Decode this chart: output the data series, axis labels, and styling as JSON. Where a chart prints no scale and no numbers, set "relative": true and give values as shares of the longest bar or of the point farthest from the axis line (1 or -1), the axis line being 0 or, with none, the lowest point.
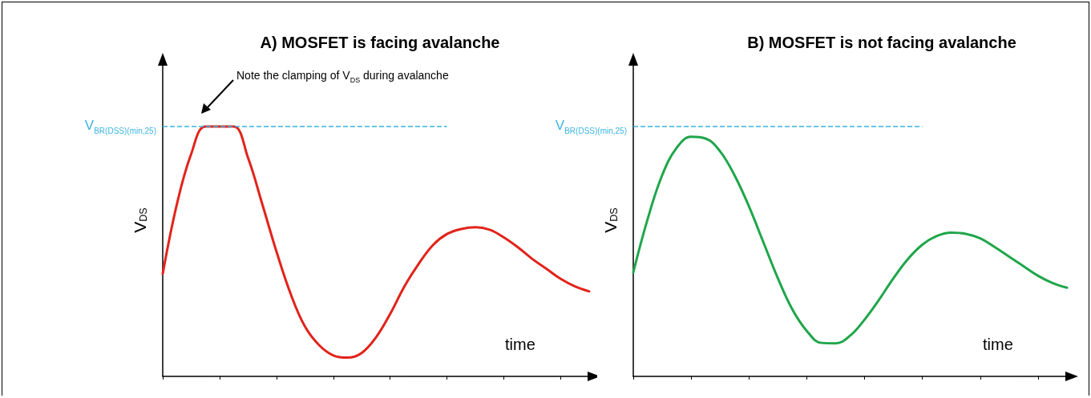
{
  "chart_data": [
    {
      "type": "line",
      "title": "A) MOSFET is facing avalanche",
      "xlabel": "time",
      "ylabel": "V$_{DS}$",
      "relative": true,
      "categories": [
        null,
        null,
        null,
        null,
        null,
        null,
        null,
        null,
        null,
        null,
        null,
        null,
        null,
        null,
        null,
        null,
        null,
        null,
        null,
        null,
        null,
        null,
        null,
        null,
        null,
        null,
        null,
        null,
        null,
        null,
        null
      ],
      "series": [
        {
          "color": "#e2231a",
          "values": [
            0.41,
            0.69,
            0.89,
            1,
            1,
            1,
            0.875,
            0.69,
            0.5,
            0.33,
            0.2,
            0.125,
            0.084,
            0.075,
            0.094,
            0.156,
            0.25,
            0.36,
            0.45,
            0.525,
            0.57,
            0.59,
            0.597,
            0.587,
            0.556,
            0.516,
            0.47,
            0.43,
            0.39,
            0.36,
            0.34
          ]
        }
      ],
      "ref_lines": [
        {
          "axis": "y",
          "value": 1,
          "label": "V$_{BR(DSS)(min,25)}$",
          "color": "#3ab4e0",
          "line_style": "dashed"
        }
      ],
      "annotations": [
        "Note the clamping of V$_{DS}$ during avalanche"
      ],
      "marker": "none",
      "line_style": "solid",
      "grid": false
    },
    {
      "type": "line",
      "title": "B) MOSFET is not facing avalanche",
      "xlabel": "time",
      "ylabel": "V$_{DS}$",
      "relative": true,
      "categories": [
        null,
        null,
        null,
        null,
        null,
        null,
        null,
        null,
        null,
        null,
        null,
        null,
        null,
        null,
        null,
        null,
        null,
        null,
        null,
        null,
        null,
        null,
        null,
        null,
        null,
        null,
        null,
        null,
        null,
        null,
        null
      ],
      "series": [
        {
          "color": "#1fa64a",
          "values": [
            0.434,
            0.658,
            0.84,
            0.954,
            1,
            0.993,
            0.94,
            0.84,
            0.71,
            0.56,
            0.41,
            0.28,
            0.19,
            0.14,
            0.138,
            0.17,
            0.237,
            0.32,
            0.41,
            0.49,
            0.55,
            0.586,
            0.6,
            0.595,
            0.576,
            0.54,
            0.5,
            0.46,
            0.42,
            0.39,
            0.37
          ]
        }
      ],
      "ref_lines": [
        {
          "axis": "y",
          "value": 1.043,
          "label": "V$_{BR(DSS)(min,25)}$",
          "color": "#3ab4e0",
          "line_style": "dashed"
        }
      ],
      "marker": "none",
      "line_style": "solid",
      "grid": false
    }
  ]
}
